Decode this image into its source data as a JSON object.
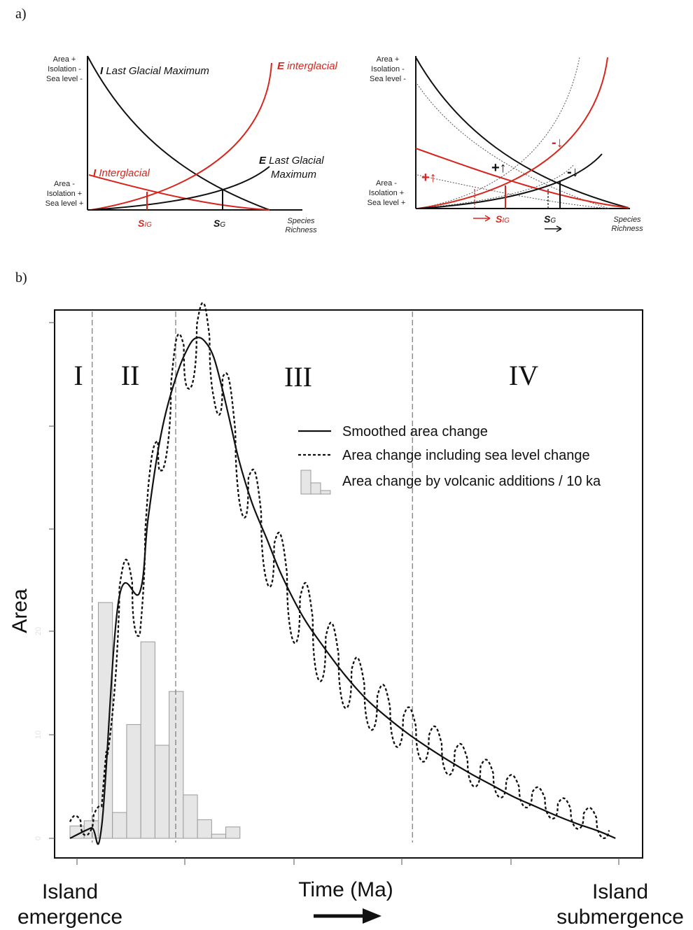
{
  "panel_a": {
    "label": "a)",
    "left": {
      "y_top": [
        "Area +",
        "Isolation -",
        "Sea level -"
      ],
      "y_bottom": [
        "Area -",
        "Isolation +",
        "Sea level +"
      ],
      "curve_I_lgm": {
        "prefix": "I",
        "text": " Last Glacial Maximum"
      },
      "curve_E_inter": {
        "prefix": "E",
        "text": " interglacial"
      },
      "curve_I_inter": {
        "prefix": "I",
        "text": " Interglacial"
      },
      "curve_E_lgm": {
        "prefix": "E",
        "text": " Last Glacial",
        "text2": "Maximum"
      },
      "s_ig": {
        "main": "S",
        "sub": "IG"
      },
      "s_g": {
        "main": "S",
        "sub": "G"
      },
      "xlabel": [
        "Species",
        "Richness"
      ]
    },
    "right": {
      "y_top": [
        "Area +",
        "Isolation -",
        "Sea level -"
      ],
      "y_bottom": [
        "Area -",
        "Isolation +",
        "Sea level +"
      ],
      "plus_up_red": "+↑",
      "plus_up_black": "+↑",
      "minus_down_red": "-↓",
      "minus_down_black": "-↓",
      "s_ig": {
        "main": "S",
        "sub": "IG"
      },
      "s_g": {
        "main": "S",
        "sub": "G"
      },
      "xlabel": [
        "Species",
        "Richness"
      ]
    },
    "colors": {
      "red": "#d7261e",
      "black": "#1a1a1a"
    }
  },
  "panel_b": {
    "label": "b)",
    "ylabel": "Area",
    "xlabel": "Time (Ma)",
    "x_left": [
      "Island",
      "emergence"
    ],
    "x_right": [
      "Island",
      "submergence"
    ],
    "phases": [
      "I",
      "II",
      "III",
      "IV"
    ],
    "legend": [
      {
        "label": "Smoothed area change",
        "style": "solid"
      },
      {
        "label": "Area change including sea level change",
        "style": "dotted"
      },
      {
        "label": "Area change by volcanic additions / 10 ka",
        "style": "histogram"
      }
    ],
    "y_ticks": [
      "0",
      "10",
      "20"
    ]
  },
  "chart_data": {
    "type": "line",
    "title": "",
    "xlabel": "Time (Ma)",
    "ylabel": "Area",
    "ylim": [
      -1,
      50
    ],
    "xlim": [
      -0.3,
      26.3
    ],
    "y_ticks": [
      0,
      10,
      20
    ],
    "series": [
      {
        "name": "Smoothed area change",
        "x": [
          0,
          1,
          1.5,
          2.3,
          3.3,
          3.7,
          4.3,
          5.0,
          5.6,
          6.0,
          6.4,
          6.8,
          7.2,
          7.6,
          8.0,
          8.6,
          9.3,
          10.0,
          11.0,
          12.0,
          13.0,
          14.0,
          15.0,
          16.0,
          17.0,
          18.0,
          19.0,
          20.0,
          21.0,
          22.0,
          23.0,
          24.0,
          25.0,
          25.8
        ],
        "y": [
          0,
          1,
          1.2,
          23,
          23.8,
          31,
          39,
          44.5,
          47.5,
          48.4,
          48,
          46.5,
          43.5,
          40,
          36.5,
          32.5,
          29,
          25.5,
          21.5,
          18.5,
          15.8,
          13.5,
          11.7,
          10.1,
          8.7,
          7.4,
          6.2,
          5.1,
          4.0,
          3.1,
          2.2,
          1.4,
          0.7,
          0
        ]
      },
      {
        "name": "Area change including sea level change",
        "style": "dotted",
        "peaks_x": [
          0.2,
          2.2,
          3.2,
          6.6,
          6.8,
          7.8,
          9.0,
          10.2,
          11.4,
          12.6,
          13.8,
          15.0,
          16.2,
          17.4,
          18.6,
          19.9,
          21.2,
          22.5,
          23.8,
          25.0
        ],
        "troughs_x": [
          0.85,
          2.6,
          3.35,
          7.2,
          8.45,
          9.7,
          10.85,
          12.1,
          13.25,
          14.5,
          15.6,
          16.85,
          18.0,
          19.25,
          20.55,
          21.8,
          23.15,
          24.4
        ]
      }
    ],
    "histogram": {
      "name": "Area change by volcanic additions / 10 ka",
      "bin_width": 0.67,
      "bins_start": 0,
      "values": [
        1.2,
        1.7,
        22.8,
        2.5,
        11,
        19,
        9,
        14.2,
        4.2,
        1.8,
        0.4,
        1.1
      ]
    },
    "phase_boundaries_x": [
      1.05,
      5.0,
      16.2
    ]
  }
}
